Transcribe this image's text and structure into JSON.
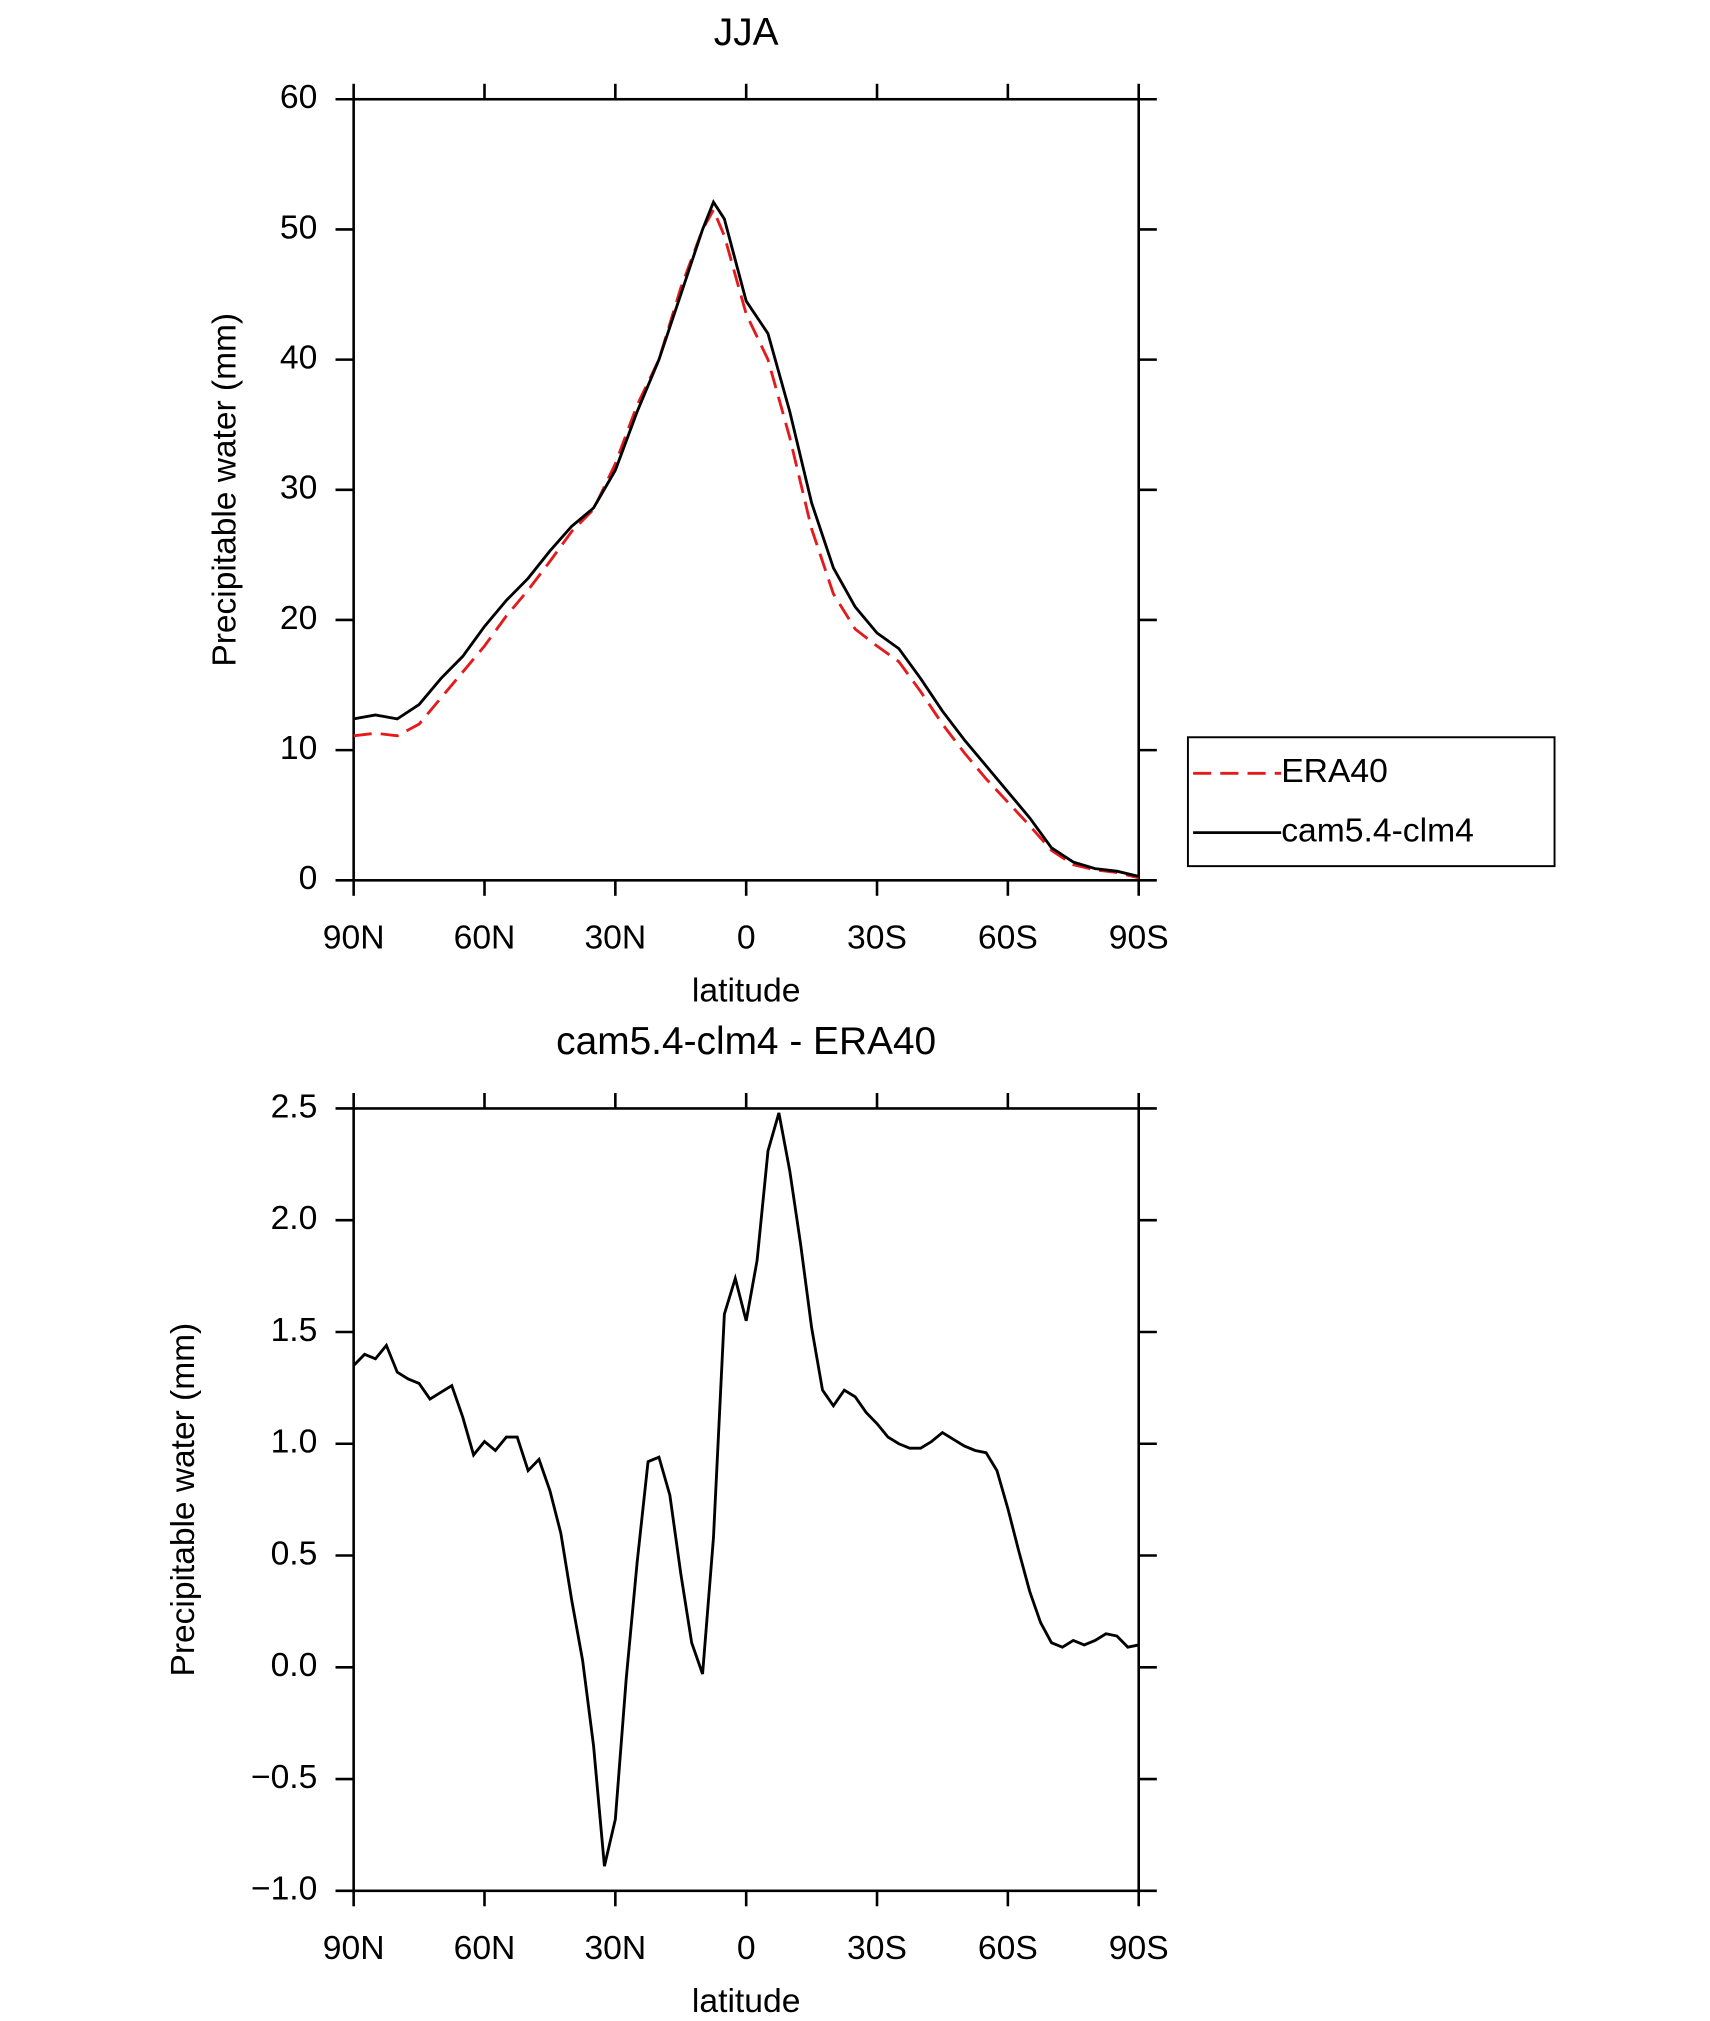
{
  "chart_data": [
    {
      "type": "line",
      "title": "JJA",
      "xlabel": "latitude",
      "ylabel": "Precipitable water (mm)",
      "x": [
        90,
        85,
        80,
        75,
        70,
        65,
        60,
        55,
        50,
        45,
        40,
        35,
        30,
        25,
        20,
        15,
        10,
        7.5,
        5,
        0,
        -5,
        -10,
        -15,
        -20,
        -25,
        -30,
        -35,
        -40,
        -45,
        -50,
        -55,
        -60,
        -65,
        -70,
        -75,
        -80,
        -85,
        -90
      ],
      "series": [
        {
          "name": "ERA40",
          "color": "#e41a1c",
          "dash": true,
          "values": [
            11.1,
            11.3,
            11.1,
            12,
            14,
            16,
            18,
            20.3,
            22.3,
            24.5,
            26.8,
            28.5,
            32,
            36.5,
            40,
            45.5,
            50,
            51.5,
            49.5,
            43.5,
            40,
            34,
            27,
            22,
            19.3,
            18,
            16.8,
            14.5,
            12,
            9.8,
            7.8,
            6,
            4.2,
            2.3,
            1.2,
            0.8,
            0.6,
            0.2
          ]
        },
        {
          "name": "cam5.4-clm4",
          "color": "#000000",
          "dash": false,
          "values": [
            12.4,
            12.7,
            12.4,
            13.5,
            15.5,
            17.2,
            19.5,
            21.5,
            23.2,
            25.3,
            27.2,
            28.6,
            31.5,
            36,
            40,
            45,
            50,
            52.1,
            50.8,
            44.5,
            42,
            36,
            29,
            24,
            21,
            19,
            17.8,
            15.5,
            13,
            10.8,
            8.8,
            6.8,
            4.8,
            2.5,
            1.4,
            0.9,
            0.7,
            0.3
          ]
        }
      ],
      "xlim": [
        90,
        -90
      ],
      "xticks": [
        {
          "value": 90,
          "label": "90N"
        },
        {
          "value": 60,
          "label": "60N"
        },
        {
          "value": 30,
          "label": "30N"
        },
        0,
        {
          "value": -30,
          "label": "30S"
        },
        {
          "value": -60,
          "label": "60S"
        },
        {
          "value": -90,
          "label": "90S"
        }
      ],
      "ylim": [
        0,
        60
      ],
      "yticks": [
        0,
        10,
        20,
        30,
        40,
        50,
        60
      ],
      "legend": "right"
    },
    {
      "type": "line",
      "title": "cam5.4-clm4 - ERA40",
      "xlabel": "latitude",
      "ylabel": "Precipitable water (mm)",
      "x": [
        90,
        87.5,
        85,
        82.5,
        80,
        77.5,
        75,
        72.5,
        70,
        67.5,
        65,
        62.5,
        60,
        57.5,
        55,
        52.5,
        50,
        47.5,
        45,
        42.5,
        40,
        37.5,
        35,
        32.5,
        30,
        27.5,
        25,
        22.5,
        20,
        17.5,
        15,
        12.5,
        10,
        7.5,
        5,
        2.5,
        0,
        -2.5,
        -5,
        -7.5,
        -10,
        -12.5,
        -15,
        -17.5,
        -20,
        -22.5,
        -25,
        -27.5,
        -30,
        -32.5,
        -35,
        -37.5,
        -40,
        -42.5,
        -45,
        -47.5,
        -50,
        -52.5,
        -55,
        -57.5,
        -60,
        -62.5,
        -65,
        -67.5,
        -70,
        -72.5,
        -75,
        -77.5,
        -80,
        -82.5,
        -85,
        -87.5,
        -90
      ],
      "values": [
        1.35,
        1.4,
        1.38,
        1.44,
        1.32,
        1.29,
        1.27,
        1.2,
        1.23,
        1.26,
        1.12,
        0.95,
        1.01,
        0.97,
        1.03,
        1.03,
        0.88,
        0.93,
        0.79,
        0.6,
        0.3,
        0.03,
        -0.35,
        -0.89,
        -0.68,
        -0.05,
        0.47,
        0.92,
        0.94,
        0.77,
        0.42,
        0.11,
        -0.03,
        0.58,
        1.58,
        1.74,
        1.55,
        1.82,
        2.31,
        2.48,
        2.22,
        1.89,
        1.52,
        1.24,
        1.17,
        1.24,
        1.21,
        1.14,
        1.09,
        1.03,
        1.0,
        0.98,
        0.98,
        1.01,
        1.05,
        1.02,
        0.99,
        0.97,
        0.96,
        0.88,
        0.71,
        0.52,
        0.34,
        0.2,
        0.11,
        0.09,
        0.12,
        0.1,
        0.12,
        0.15,
        0.14,
        0.09,
        0.1
      ],
      "color": "#000000",
      "xlim": [
        90,
        -90
      ],
      "xticks": [
        {
          "value": 90,
          "label": "90N"
        },
        {
          "value": 60,
          "label": "60N"
        },
        {
          "value": 30,
          "label": "30N"
        },
        0,
        {
          "value": -30,
          "label": "30S"
        },
        {
          "value": -60,
          "label": "60S"
        },
        {
          "value": -90,
          "label": "90S"
        }
      ],
      "ylim": [
        -1,
        2.5
      ],
      "yticks": [
        {
          "value": -1,
          "label": "−1.0"
        },
        {
          "value": -0.5,
          "label": "−0.5"
        },
        {
          "value": 0,
          "label": "0.0"
        },
        0.5,
        {
          "value": 1,
          "label": "1.0"
        },
        1.5,
        {
          "value": 2,
          "label": "2.0"
        },
        2.5
      ]
    }
  ]
}
